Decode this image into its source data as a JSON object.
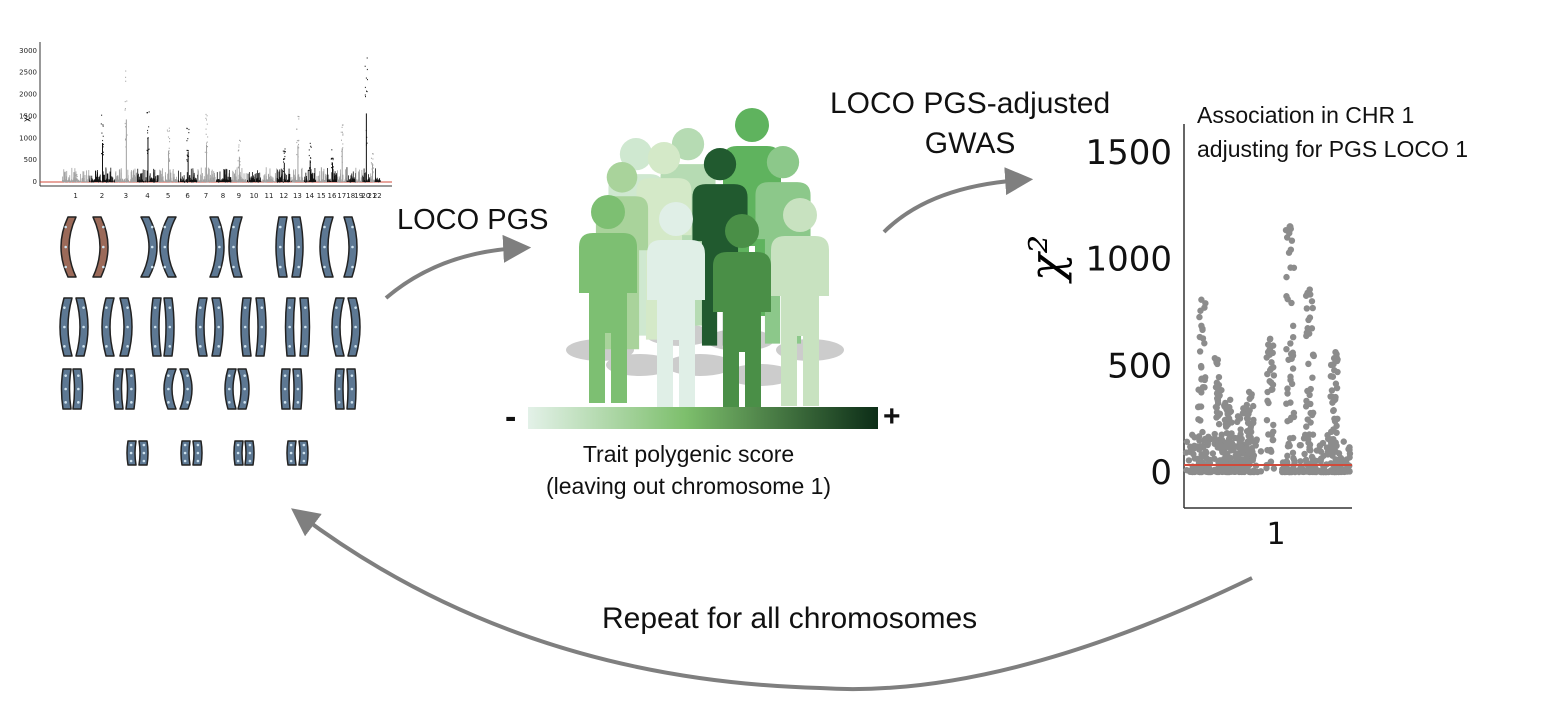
{
  "labels": {
    "loco_pgs": "LOCO PGS",
    "gwas_line1": "LOCO PGS-adjusted",
    "gwas_line2": "GWAS",
    "assoc_line1": "Association in CHR 1",
    "assoc_line2": "adjusting for PGS LOCO 1",
    "repeat": "Repeat for all chromosomes",
    "trait_line1": "Trait polygenic score",
    "trait_line2": "(leaving out chromosome 1)",
    "minus": "-",
    "plus": "+"
  },
  "colors": {
    "arrow": "#7f7f7f",
    "gradient_start": "#e3f1e8",
    "gradient_mid": "#7dbf6c",
    "gradient_end": "#0c2d17",
    "manhattan_gray": "#a0a0a0",
    "manhattan_black": "#111111",
    "threshold": "#d04a3a"
  },
  "chart_data": [
    {
      "type": "scatter",
      "title": "",
      "xlabel": "",
      "ylabel": "χ²",
      "ylim": [
        0,
        3200
      ],
      "yticks": [
        "3000",
        "2500",
        "2000",
        "1500",
        "1000",
        "500",
        "0"
      ],
      "xticks": [
        "1",
        "2",
        "3",
        "4",
        "5",
        "6",
        "7",
        "8",
        "9",
        "10",
        "11",
        "12",
        "13",
        "14",
        "15",
        "16",
        "17",
        "18",
        "19",
        "20",
        "21",
        "22"
      ],
      "peaks": [
        180,
        1620,
        2600,
        1850,
        1300,
        1560,
        1050,
        800,
        450,
        1520,
        900,
        800,
        1400,
        2850,
        700
      ]
    },
    {
      "type": "scatter",
      "title": "Association in CHR 1 adjusting for PGS LOCO 1",
      "xlabel": "",
      "ylabel": "χ²",
      "ylim": [
        0,
        1600
      ],
      "yticks": [
        "1500",
        "1000",
        "500",
        "0"
      ],
      "xticks": [
        "1"
      ],
      "threshold": 30,
      "peaks": [
        810,
        570,
        380,
        630,
        1150,
        880,
        570
      ]
    }
  ]
}
